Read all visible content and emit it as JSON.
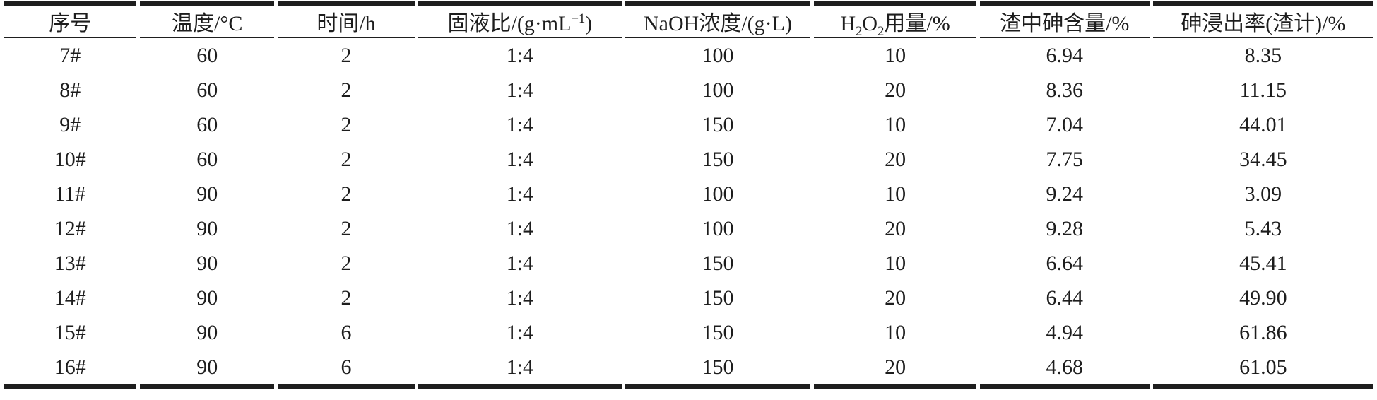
{
  "colors": {
    "rule": "#1e1e1e",
    "text": "#1d1d1d",
    "background": "#ffffff"
  },
  "table": {
    "columns": [
      {
        "id": "serial-number",
        "label": "序号"
      },
      {
        "id": "temperature",
        "label": "温度/°C"
      },
      {
        "id": "time",
        "label": "时间/h"
      },
      {
        "id": "solid-liquid-ratio",
        "label_parts": [
          {
            "text": "固液比/(g·mL"
          },
          {
            "text": "−1",
            "style": "sup"
          },
          {
            "text": ")"
          }
        ]
      },
      {
        "id": "naoh-concentration",
        "label": "NaOH浓度/(g·L)"
      },
      {
        "id": "h2o2-dosage",
        "label_parts": [
          {
            "text": "H"
          },
          {
            "text": "2",
            "style": "sub"
          },
          {
            "text": "O"
          },
          {
            "text": "2",
            "style": "sub"
          },
          {
            "text": "用量/%"
          }
        ]
      },
      {
        "id": "arsenic-in-residue",
        "label": "渣中砷含量/%"
      },
      {
        "id": "arsenic-leaching-rate",
        "label": "砷浸出率(渣计)/%"
      }
    ],
    "rows": [
      [
        "7#",
        "60",
        "2",
        "1:4",
        "100",
        "10",
        "6.94",
        "8.35"
      ],
      [
        "8#",
        "60",
        "2",
        "1:4",
        "100",
        "20",
        "8.36",
        "11.15"
      ],
      [
        "9#",
        "60",
        "2",
        "1:4",
        "150",
        "10",
        "7.04",
        "44.01"
      ],
      [
        "10#",
        "60",
        "2",
        "1:4",
        "150",
        "20",
        "7.75",
        "34.45"
      ],
      [
        "11#",
        "90",
        "2",
        "1:4",
        "100",
        "10",
        "9.24",
        "3.09"
      ],
      [
        "12#",
        "90",
        "2",
        "1:4",
        "100",
        "20",
        "9.28",
        "5.43"
      ],
      [
        "13#",
        "90",
        "2",
        "1:4",
        "150",
        "10",
        "6.64",
        "45.41"
      ],
      [
        "14#",
        "90",
        "2",
        "1:4",
        "150",
        "20",
        "6.44",
        "49.90"
      ],
      [
        "15#",
        "90",
        "6",
        "1:4",
        "150",
        "10",
        "4.94",
        "61.86"
      ],
      [
        "16#",
        "90",
        "6",
        "1:4",
        "150",
        "20",
        "4.68",
        "61.05"
      ]
    ]
  }
}
